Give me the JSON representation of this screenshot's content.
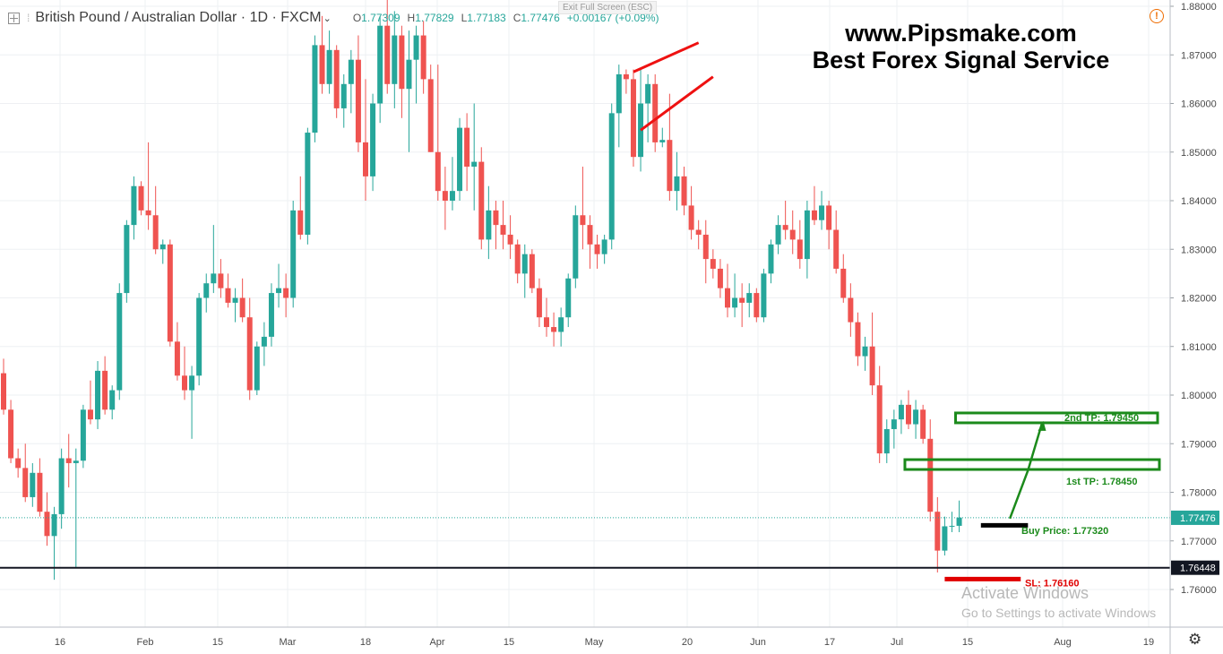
{
  "header": {
    "symbol": "British Pound / Australian Dollar",
    "interval": "1D",
    "source": "FXCM",
    "chevron": "⌄",
    "o_label": "O",
    "o_val": "1.77309",
    "h_label": "H",
    "h_val": "1.77829",
    "l_label": "L",
    "l_val": "1.77183",
    "c_label": "C",
    "c_val": "1.77476",
    "change": "+0.00167 (+0.09%)"
  },
  "exit_fullscreen": "Exit Full Screen (ESC)",
  "brand": {
    "line1": "www.Pipsmake.com",
    "line2": "Best Forex Signal Service"
  },
  "watermark": {
    "line1": "Activate Windows",
    "line2": "Go to Settings to activate Windows"
  },
  "icons": {
    "settings": "gear-icon",
    "alert": "warning-icon",
    "chart_menu": "plus-box-icon"
  },
  "colors": {
    "up": "#26a69a",
    "down": "#ef5350",
    "tp": "#1b8a1b",
    "sl": "#e00000",
    "entry": "#000000",
    "trendline": "#ee1111",
    "support": "#131722"
  },
  "chart_data": {
    "type": "candlestick",
    "ylim": [
      1.7555,
      1.881
    ],
    "y_ticks": [
      "1.88000",
      "1.87000",
      "1.86000",
      "1.85000",
      "1.84000",
      "1.83000",
      "1.82000",
      "1.81000",
      "1.80000",
      "1.79000",
      "1.78000",
      "1.77000",
      "1.76000"
    ],
    "x_ticks": [
      "16",
      "Feb",
      "15",
      "Mar",
      "18",
      "Apr",
      "15",
      "May",
      "20",
      "Jun",
      "17",
      "Jul",
      "15",
      "Aug",
      "19"
    ],
    "last_price": "1.77476",
    "support_price": "1.76448",
    "levels": {
      "tp2": {
        "label": "2nd TP: 1.79450",
        "value": 1.7945
      },
      "tp1": {
        "label": "1st TP: 1.78450",
        "value": 1.7845
      },
      "entry": {
        "label": "Buy Price: 1.77320",
        "value": 1.7732
      },
      "sl": {
        "label": "SL: 1.76160",
        "value": 1.7616
      }
    },
    "candles": [
      [
        1.8045,
        1.8075,
        1.796,
        1.797
      ],
      [
        1.797,
        1.799,
        1.786,
        1.787
      ],
      [
        1.787,
        1.789,
        1.783,
        1.785
      ],
      [
        1.785,
        1.79,
        1.778,
        1.779
      ],
      [
        1.779,
        1.786,
        1.777,
        1.784
      ],
      [
        1.784,
        1.787,
        1.775,
        1.776
      ],
      [
        1.776,
        1.78,
        1.769,
        1.771
      ],
      [
        1.771,
        1.777,
        1.762,
        1.7755
      ],
      [
        1.7755,
        1.789,
        1.7725,
        1.787
      ],
      [
        1.787,
        1.792,
        1.781,
        1.786
      ],
      [
        1.786,
        1.789,
        1.7645,
        1.7865
      ],
      [
        1.7865,
        1.798,
        1.785,
        1.797
      ],
      [
        1.797,
        1.803,
        1.794,
        1.795
      ],
      [
        1.795,
        1.807,
        1.793,
        1.805
      ],
      [
        1.805,
        1.808,
        1.796,
        1.797
      ],
      [
        1.797,
        1.802,
        1.795,
        1.801
      ],
      [
        1.801,
        1.823,
        1.799,
        1.821
      ],
      [
        1.821,
        1.836,
        1.819,
        1.835
      ],
      [
        1.835,
        1.845,
        1.832,
        1.843
      ],
      [
        1.843,
        1.844,
        1.837,
        1.838
      ],
      [
        1.838,
        1.852,
        1.834,
        1.837
      ],
      [
        1.837,
        1.843,
        1.829,
        1.83
      ],
      [
        1.83,
        1.832,
        1.827,
        1.831
      ],
      [
        1.831,
        1.832,
        1.81,
        1.811
      ],
      [
        1.811,
        1.815,
        1.803,
        1.804
      ],
      [
        1.804,
        1.81,
        1.799,
        1.801
      ],
      [
        1.801,
        1.806,
        1.791,
        1.804
      ],
      [
        1.804,
        1.821,
        1.802,
        1.82
      ],
      [
        1.82,
        1.825,
        1.817,
        1.823
      ],
      [
        1.823,
        1.835,
        1.821,
        1.825
      ],
      [
        1.825,
        1.828,
        1.82,
        1.822
      ],
      [
        1.822,
        1.825,
        1.818,
        1.819
      ],
      [
        1.819,
        1.822,
        1.815,
        1.82
      ],
      [
        1.82,
        1.824,
        1.815,
        1.816
      ],
      [
        1.816,
        1.82,
        1.799,
        1.801
      ],
      [
        1.801,
        1.811,
        1.8,
        1.81
      ],
      [
        1.81,
        1.815,
        1.806,
        1.812
      ],
      [
        1.812,
        1.823,
        1.81,
        1.821
      ],
      [
        1.821,
        1.827,
        1.818,
        1.822
      ],
      [
        1.822,
        1.825,
        1.816,
        1.82
      ],
      [
        1.82,
        1.84,
        1.818,
        1.838
      ],
      [
        1.838,
        1.845,
        1.832,
        1.833
      ],
      [
        1.833,
        1.855,
        1.831,
        1.854
      ],
      [
        1.854,
        1.874,
        1.852,
        1.872
      ],
      [
        1.872,
        1.878,
        1.862,
        1.864
      ],
      [
        1.864,
        1.875,
        1.862,
        1.871
      ],
      [
        1.871,
        1.872,
        1.857,
        1.859
      ],
      [
        1.859,
        1.866,
        1.855,
        1.864
      ],
      [
        1.864,
        1.871,
        1.858,
        1.869
      ],
      [
        1.869,
        1.874,
        1.85,
        1.852
      ],
      [
        1.852,
        1.865,
        1.84,
        1.845
      ],
      [
        1.845,
        1.862,
        1.842,
        1.86
      ],
      [
        1.86,
        1.878,
        1.856,
        1.876
      ],
      [
        1.876,
        1.883,
        1.862,
        1.864
      ],
      [
        1.864,
        1.879,
        1.859,
        1.874
      ],
      [
        1.874,
        1.876,
        1.857,
        1.863
      ],
      [
        1.863,
        1.875,
        1.85,
        1.869
      ],
      [
        1.869,
        1.876,
        1.86,
        1.874
      ],
      [
        1.874,
        1.877,
        1.862,
        1.865
      ],
      [
        1.865,
        1.868,
        1.85,
        1.85
      ],
      [
        1.85,
        1.868,
        1.84,
        1.842
      ],
      [
        1.842,
        1.847,
        1.834,
        1.84
      ],
      [
        1.84,
        1.849,
        1.838,
        1.842
      ],
      [
        1.842,
        1.857,
        1.84,
        1.855
      ],
      [
        1.855,
        1.858,
        1.842,
        1.847
      ],
      [
        1.847,
        1.86,
        1.838,
        1.848
      ],
      [
        1.848,
        1.851,
        1.83,
        1.832
      ],
      [
        1.832,
        1.843,
        1.828,
        1.838
      ],
      [
        1.838,
        1.84,
        1.83,
        1.835
      ],
      [
        1.835,
        1.84,
        1.83,
        1.833
      ],
      [
        1.833,
        1.837,
        1.828,
        1.831
      ],
      [
        1.831,
        1.832,
        1.823,
        1.825
      ],
      [
        1.825,
        1.831,
        1.82,
        1.829
      ],
      [
        1.829,
        1.83,
        1.821,
        1.822
      ],
      [
        1.822,
        1.824,
        1.814,
        1.816
      ],
      [
        1.816,
        1.82,
        1.812,
        1.814
      ],
      [
        1.814,
        1.817,
        1.81,
        1.813
      ],
      [
        1.813,
        1.818,
        1.81,
        1.816
      ],
      [
        1.816,
        1.825,
        1.814,
        1.824
      ],
      [
        1.824,
        1.839,
        1.822,
        1.837
      ],
      [
        1.837,
        1.847,
        1.83,
        1.835
      ],
      [
        1.835,
        1.837,
        1.826,
        1.831
      ],
      [
        1.831,
        1.833,
        1.826,
        1.829
      ],
      [
        1.829,
        1.833,
        1.827,
        1.832
      ],
      [
        1.832,
        1.86,
        1.83,
        1.858
      ],
      [
        1.858,
        1.868,
        1.851,
        1.866
      ],
      [
        1.866,
        1.867,
        1.862,
        1.865
      ],
      [
        1.865,
        1.867,
        1.847,
        1.849
      ],
      [
        1.849,
        1.867,
        1.846,
        1.86
      ],
      [
        1.86,
        1.866,
        1.852,
        1.864
      ],
      [
        1.864,
        1.866,
        1.85,
        1.852
      ],
      [
        1.852,
        1.855,
        1.851,
        1.8525
      ],
      [
        1.8525,
        1.862,
        1.84,
        1.842
      ],
      [
        1.842,
        1.85,
        1.838,
        1.845
      ],
      [
        1.845,
        1.847,
        1.837,
        1.839
      ],
      [
        1.839,
        1.843,
        1.832,
        1.834
      ],
      [
        1.834,
        1.836,
        1.83,
        1.833
      ],
      [
        1.833,
        1.836,
        1.823,
        1.828
      ],
      [
        1.828,
        1.83,
        1.824,
        1.826
      ],
      [
        1.826,
        1.828,
        1.82,
        1.822
      ],
      [
        1.822,
        1.827,
        1.816,
        1.818
      ],
      [
        1.818,
        1.825,
        1.816,
        1.82
      ],
      [
        1.82,
        1.823,
        1.814,
        1.819
      ],
      [
        1.819,
        1.823,
        1.816,
        1.821
      ],
      [
        1.821,
        1.822,
        1.815,
        1.816
      ],
      [
        1.816,
        1.826,
        1.815,
        1.825
      ],
      [
        1.825,
        1.832,
        1.823,
        1.831
      ],
      [
        1.831,
        1.837,
        1.829,
        1.835
      ],
      [
        1.835,
        1.84,
        1.832,
        1.834
      ],
      [
        1.834,
        1.838,
        1.829,
        1.832
      ],
      [
        1.832,
        1.836,
        1.826,
        1.828
      ],
      [
        1.828,
        1.84,
        1.824,
        1.838
      ],
      [
        1.838,
        1.843,
        1.835,
        1.836
      ],
      [
        1.836,
        1.842,
        1.834,
        1.839
      ],
      [
        1.839,
        1.84,
        1.83,
        1.834
      ],
      [
        1.834,
        1.838,
        1.825,
        1.826
      ],
      [
        1.826,
        1.829,
        1.819,
        1.82
      ],
      [
        1.82,
        1.823,
        1.812,
        1.815
      ],
      [
        1.815,
        1.817,
        1.806,
        1.808
      ],
      [
        1.808,
        1.812,
        1.805,
        1.81
      ],
      [
        1.81,
        1.817,
        1.8,
        1.802
      ],
      [
        1.802,
        1.806,
        1.786,
        1.788
      ],
      [
        1.788,
        1.795,
        1.786,
        1.793
      ],
      [
        1.793,
        1.797,
        1.789,
        1.795
      ],
      [
        1.795,
        1.799,
        1.792,
        1.798
      ],
      [
        1.798,
        1.801,
        1.793,
        1.794
      ],
      [
        1.794,
        1.799,
        1.791,
        1.797
      ],
      [
        1.797,
        1.798,
        1.79,
        1.791
      ],
      [
        1.791,
        1.795,
        1.774,
        1.776
      ],
      [
        1.776,
        1.779,
        1.7635,
        1.768
      ],
      [
        1.768,
        1.775,
        1.767,
        1.773
      ],
      [
        1.773,
        1.776,
        1.7718,
        1.7731
      ],
      [
        1.7731,
        1.7783,
        1.7718,
        1.7748
      ]
    ]
  }
}
